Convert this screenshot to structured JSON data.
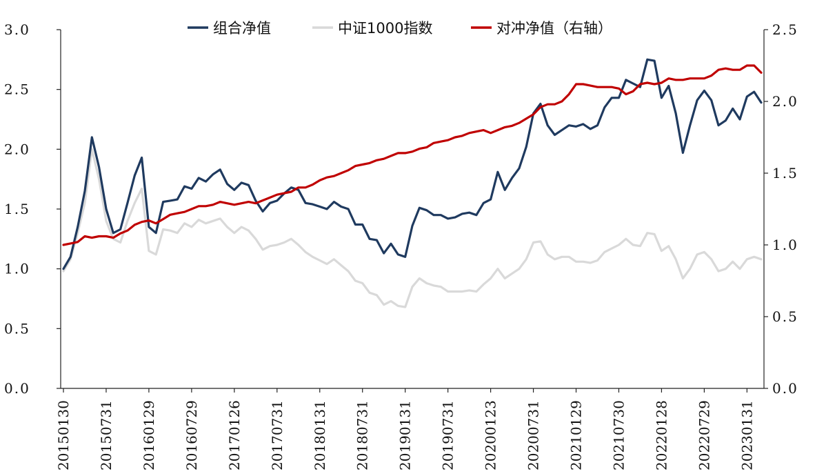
{
  "chart_data": {
    "type": "line",
    "title": "",
    "xlabel": "",
    "ylabel": "",
    "y_left": {
      "ylim": [
        0,
        3.0
      ],
      "ticks": [
        "0.0",
        "0.5",
        "1.0",
        "1.5",
        "2.0",
        "2.5",
        "3.0"
      ]
    },
    "y_right": {
      "ylim": [
        0,
        2.5
      ],
      "ticks": [
        "0.0",
        "0.5",
        "1.0",
        "1.5",
        "2.0",
        "2.5"
      ]
    },
    "x_tick_labels": [
      "20150130",
      "20150731",
      "20160129",
      "20160729",
      "20170126",
      "20170731",
      "20180131",
      "20180731",
      "20190131",
      "20190731",
      "20200123",
      "20200731",
      "20210129",
      "20210730",
      "20220128",
      "20220729",
      "20230131"
    ],
    "x_tick_step": 6,
    "grid": false,
    "legend_position": "top-center",
    "series": [
      {
        "name": "组合净值",
        "axis": "left",
        "color": "#1f3a5f",
        "values": [
          1.0,
          1.1,
          1.35,
          1.65,
          2.1,
          1.85,
          1.5,
          1.3,
          1.33,
          1.55,
          1.78,
          1.93,
          1.35,
          1.3,
          1.56,
          1.57,
          1.58,
          1.69,
          1.67,
          1.76,
          1.73,
          1.79,
          1.83,
          1.71,
          1.66,
          1.72,
          1.7,
          1.57,
          1.48,
          1.55,
          1.57,
          1.63,
          1.68,
          1.66,
          1.55,
          1.54,
          1.52,
          1.5,
          1.56,
          1.52,
          1.5,
          1.37,
          1.37,
          1.25,
          1.24,
          1.13,
          1.21,
          1.12,
          1.1,
          1.36,
          1.51,
          1.49,
          1.45,
          1.45,
          1.42,
          1.43,
          1.46,
          1.47,
          1.45,
          1.55,
          1.58,
          1.81,
          1.66,
          1.76,
          1.84,
          2.02,
          2.3,
          2.38,
          2.2,
          2.12,
          2.16,
          2.2,
          2.19,
          2.21,
          2.17,
          2.2,
          2.35,
          2.43,
          2.43,
          2.58,
          2.55,
          2.52,
          2.75,
          2.74,
          2.43,
          2.53,
          2.3,
          1.97,
          2.2,
          2.41,
          2.49,
          2.41,
          2.2,
          2.24,
          2.34,
          2.25,
          2.44,
          2.48,
          2.39
        ]
      },
      {
        "name": "中证1000指数",
        "axis": "left",
        "color": "#d9d9d9",
        "values": [
          0.98,
          1.08,
          1.3,
          1.55,
          2.0,
          1.75,
          1.4,
          1.25,
          1.22,
          1.4,
          1.55,
          1.67,
          1.15,
          1.12,
          1.33,
          1.32,
          1.3,
          1.38,
          1.35,
          1.41,
          1.38,
          1.4,
          1.42,
          1.35,
          1.3,
          1.35,
          1.32,
          1.25,
          1.16,
          1.19,
          1.2,
          1.22,
          1.25,
          1.2,
          1.14,
          1.1,
          1.07,
          1.04,
          1.08,
          1.03,
          0.98,
          0.9,
          0.88,
          0.8,
          0.78,
          0.7,
          0.73,
          0.69,
          0.68,
          0.85,
          0.92,
          0.88,
          0.86,
          0.85,
          0.81,
          0.81,
          0.81,
          0.82,
          0.81,
          0.87,
          0.92,
          1.0,
          0.92,
          0.96,
          1.0,
          1.08,
          1.22,
          1.23,
          1.12,
          1.08,
          1.1,
          1.1,
          1.06,
          1.06,
          1.05,
          1.07,
          1.14,
          1.17,
          1.2,
          1.25,
          1.2,
          1.19,
          1.3,
          1.29,
          1.15,
          1.19,
          1.08,
          0.92,
          1.0,
          1.12,
          1.14,
          1.08,
          0.98,
          1.0,
          1.06,
          1.0,
          1.08,
          1.1,
          1.08
        ]
      },
      {
        "name": "对冲净值（右轴）",
        "axis": "right",
        "color": "#c00000",
        "values": [
          1.0,
          1.01,
          1.02,
          1.06,
          1.05,
          1.06,
          1.06,
          1.05,
          1.08,
          1.1,
          1.14,
          1.16,
          1.17,
          1.15,
          1.18,
          1.21,
          1.22,
          1.23,
          1.25,
          1.27,
          1.27,
          1.28,
          1.3,
          1.29,
          1.28,
          1.29,
          1.3,
          1.29,
          1.31,
          1.33,
          1.35,
          1.36,
          1.37,
          1.4,
          1.4,
          1.42,
          1.45,
          1.47,
          1.48,
          1.5,
          1.52,
          1.55,
          1.56,
          1.57,
          1.59,
          1.6,
          1.62,
          1.64,
          1.64,
          1.65,
          1.67,
          1.68,
          1.71,
          1.72,
          1.73,
          1.75,
          1.76,
          1.78,
          1.79,
          1.8,
          1.78,
          1.8,
          1.82,
          1.83,
          1.85,
          1.88,
          1.91,
          1.96,
          1.98,
          1.98,
          2.0,
          2.05,
          2.12,
          2.12,
          2.11,
          2.1,
          2.1,
          2.1,
          2.09,
          2.05,
          2.07,
          2.12,
          2.13,
          2.12,
          2.13,
          2.16,
          2.15,
          2.15,
          2.16,
          2.16,
          2.16,
          2.18,
          2.22,
          2.23,
          2.22,
          2.22,
          2.25,
          2.25,
          2.2
        ]
      }
    ]
  }
}
